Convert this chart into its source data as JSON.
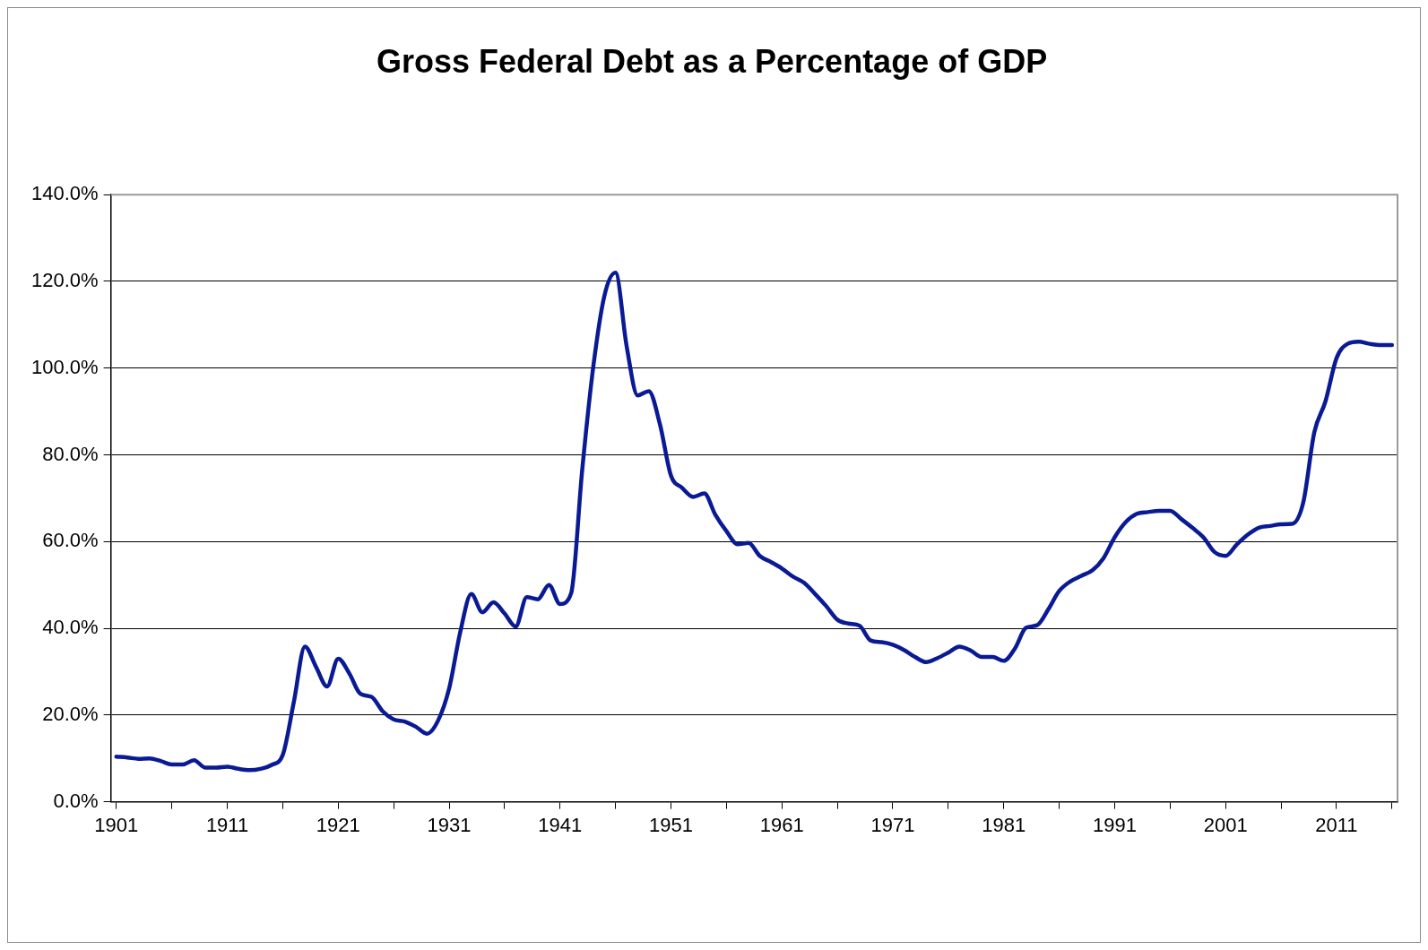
{
  "chart_data": {
    "type": "line",
    "title": "Gross Federal Debt as a Percentage of GDP",
    "x": [
      1901,
      1902,
      1903,
      1904,
      1905,
      1906,
      1907,
      1908,
      1909,
      1910,
      1911,
      1912,
      1913,
      1914,
      1915,
      1916,
      1917,
      1918,
      1919,
      1920,
      1921,
      1922,
      1923,
      1924,
      1925,
      1926,
      1927,
      1928,
      1929,
      1930,
      1931,
      1932,
      1933,
      1934,
      1935,
      1936,
      1937,
      1938,
      1939,
      1940,
      1941,
      1942,
      1943,
      1944,
      1945,
      1946,
      1947,
      1948,
      1949,
      1950,
      1951,
      1952,
      1953,
      1954,
      1955,
      1956,
      1957,
      1958,
      1959,
      1960,
      1961,
      1962,
      1963,
      1964,
      1965,
      1966,
      1967,
      1968,
      1969,
      1970,
      1971,
      1972,
      1973,
      1974,
      1975,
      1976,
      1977,
      1978,
      1979,
      1980,
      1981,
      1982,
      1983,
      1984,
      1985,
      1986,
      1987,
      1988,
      1989,
      1990,
      1991,
      1992,
      1993,
      1994,
      1995,
      1996,
      1997,
      1998,
      1999,
      2000,
      2001,
      2002,
      2003,
      2004,
      2005,
      2006,
      2007,
      2008,
      2009,
      2010,
      2011,
      2012,
      2013,
      2014,
      2015,
      2016
    ],
    "series": [
      {
        "color": "#0a1a94",
        "values": [
          10.4,
          10.2,
          9.9,
          10.0,
          9.4,
          8.6,
          8.6,
          9.6,
          7.9,
          7.9,
          8.1,
          7.6,
          7.3,
          7.6,
          8.5,
          10.8,
          23,
          35.8,
          31.1,
          26.6,
          33.0,
          29.6,
          24.9,
          24.2,
          20.9,
          19.0,
          18.5,
          17.3,
          15.7,
          18.7,
          26.1,
          39.1,
          47.9,
          43.7,
          46.0,
          43.4,
          40.4,
          47.2,
          46.7,
          50.0,
          45.6,
          48.1,
          76.6,
          100.4,
          116.7,
          122.0,
          105.1,
          93.7,
          94.7,
          87.1,
          75.2,
          72.4,
          70.3,
          71.1,
          66.2,
          62.4,
          59.4,
          59.7,
          56.7,
          55.3,
          53.8,
          51.9,
          50.5,
          47.9,
          45.1,
          42.0,
          41.1,
          40.6,
          37.2,
          36.8,
          36.2,
          35.0,
          33.4,
          32.2,
          33.1,
          34.4,
          35.8,
          34.9,
          33.4,
          33.4,
          32.5,
          35.3,
          40.1,
          40.7,
          44.3,
          48.6,
          50.8,
          52.1,
          53.4,
          56.2,
          61.0,
          64.5,
          66.4,
          66.8,
          67.1,
          67.1,
          65.2,
          63.2,
          61.0,
          57.6,
          56.7,
          59.3,
          61.6,
          63.2,
          63.6,
          64.0,
          64.1,
          69.0,
          85.2,
          92.3,
          102.3,
          105.6,
          106.1,
          105.6,
          105.3,
          105.3
        ]
      }
    ],
    "xlim": [
      1900.5,
      2016.5
    ],
    "xticks": [
      1901,
      {
        "value": 1906,
        "label": null
      },
      1911,
      {
        "value": 1916,
        "label": null
      },
      1921,
      {
        "value": 1926,
        "label": null
      },
      1931,
      {
        "value": 1936,
        "label": null
      },
      1941,
      {
        "value": 1946,
        "label": null
      },
      1951,
      {
        "value": 1956,
        "label": null
      },
      1961,
      {
        "value": 1966,
        "label": null
      },
      1971,
      {
        "value": 1976,
        "label": null
      },
      1981,
      {
        "value": 1986,
        "label": null
      },
      1991,
      {
        "value": 1996,
        "label": null
      },
      2001,
      {
        "value": 2006,
        "label": null
      },
      2011,
      {
        "value": 2016,
        "label": null
      }
    ],
    "ylim": [
      0,
      140
    ],
    "yticks": [
      {
        "value": 0,
        "label": "0.0%"
      },
      {
        "value": 20,
        "label": "20.0%"
      },
      {
        "value": 40,
        "label": "40.0%"
      },
      {
        "value": 60,
        "label": "60.0%"
      },
      {
        "value": 80,
        "label": "80.0%"
      },
      {
        "value": 100,
        "label": "100.0%"
      },
      {
        "value": 120,
        "label": "120.0%"
      },
      {
        "value": 140,
        "label": "140.0%"
      }
    ],
    "grid": "y",
    "legend": false
  }
}
